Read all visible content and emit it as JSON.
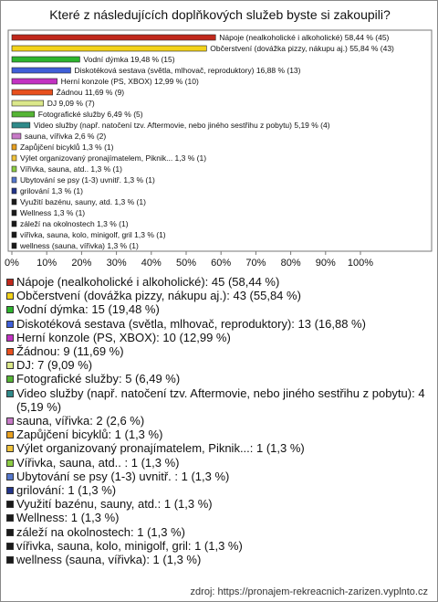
{
  "chart_data": {
    "type": "bar",
    "orientation": "horizontal",
    "title": "Které z následujících doplňkových služeb byste si zakoupili?",
    "categories": [
      "Nápoje (nealkoholické i alkoholické)",
      "Občerstvení (dovážka pizzy, nákupu aj.)",
      "Vodní dýmka",
      "Diskotéková sestava (světla, mlhovač, reproduktory)",
      "Herní konzole (PS, XBOX)",
      "Žádnou",
      "DJ",
      "Fotografické služby",
      "Video služby (např. natočení tzv. Aftermovie, nebo jiného sestřihu z pobytu)",
      "sauna, vířivka",
      "Zapůjčení bicyklů",
      "Výlet organizovaný pronajímatelem, Piknik...",
      "Vířivka, sauna, atd.. ",
      "Ubytování se psy (1-3) uvnitř. ",
      "grilování",
      "Využití bazénu, sauny, atd.",
      "Wellness",
      "záleží na okolnostech",
      "vířivka, sauna, kolo, minigolf, gril",
      "wellness (sauna, vířivka)"
    ],
    "values": [
      58.44,
      55.84,
      19.48,
      16.88,
      12.99,
      11.69,
      9.09,
      6.49,
      5.19,
      2.6,
      1.3,
      1.3,
      1.3,
      1.3,
      1.3,
      1.3,
      1.3,
      1.3,
      1.3,
      1.3
    ],
    "value_labels": [
      "Nápoje (nealkoholické i alkoholické) 58,44 % (45)",
      "Občerstvení (dovážka pizzy, nákupu aj.) 55,84 % (43)",
      "Vodní dýmka 19,48 % (15)",
      "Diskotéková sestava (světla, mlhovač, reproduktory) 16,88 % (13)",
      "Herní konzole (PS, XBOX) 12,99 % (10)",
      "Žádnou 11,69 % (9)",
      "DJ 9,09 % (7)",
      "Fotografické služby 6,49 % (5)",
      "Video služby (např. natočení tzv. Aftermovie, nebo jiného sestřihu z pobytu) 5,19 % (4)",
      "sauna, vířivka 2,6 % (2)",
      "Zapůjčení bicyklů 1,3 % (1)",
      "Výlet organizovaný pronajímatelem, Piknik... 1,3 % (1)",
      "Vířivka, sauna, atd..  1,3 % (1)",
      "Ubytování se psy (1-3) uvnitř.  1,3 % (1)",
      "grilování 1,3 % (1)",
      "Využití bazénu, sauny, atd. 1,3 % (1)",
      "Wellness 1,3 % (1)",
      "záleží na okolnostech 1,3 % (1)",
      "vířivka, sauna, kolo, minigolf, gril 1,3 % (1)",
      "wellness (sauna, vířivka) 1,3 % (1)"
    ],
    "legend_labels": [
      "Nápoje (nealkoholické i alkoholické): 45 (58,44 %)",
      "Občerstvení (dovážka pizzy, nákupu aj.): 43 (55,84 %)",
      "Vodní dýmka: 15 (19,48 %)",
      "Diskotéková sestava (světla, mlhovač, reproduktory): 13 (16,88 %)",
      "Herní konzole (PS, XBOX): 10 (12,99 %)",
      "Žádnou: 9 (11,69 %)",
      "DJ: 7 (9,09 %)",
      "Fotografické služby: 5 (6,49 %)",
      "Video služby (např. natočení tzv. Aftermovie, nebo jiného sestřihu z pobytu): 4 (5,19 %)",
      "sauna, vířivka: 2 (2,6 %)",
      "Zapůjčení bicyklů: 1 (1,3 %)",
      "Výlet organizovaný pronajímatelem, Piknik...: 1 (1,3 %)",
      "Vířivka, sauna, atd.. : 1 (1,3 %)",
      "Ubytování se psy (1-3) uvnitř. : 1 (1,3 %)",
      "grilování: 1 (1,3 %)",
      "Využití bazénu, sauny, atd.: 1 (1,3 %)",
      "Wellness: 1 (1,3 %)",
      "záleží na okolnostech: 1 (1,3 %)",
      "vířivka, sauna, kolo, minigolf, gril: 1 (1,3 %)",
      "wellness (sauna, vířivka): 1 (1,3 %)"
    ],
    "colors": [
      "#c0281c",
      "#f2d21a",
      "#2db52d",
      "#3f5fd8",
      "#c232c2",
      "#e8501e",
      "#dbe88a",
      "#55b535",
      "#2f8a8a",
      "#c77ac7",
      "#e8a020",
      "#efc23c",
      "#8ccc44",
      "#5577cc",
      "#22348a",
      "#1a1a1a",
      "#1a1a1a",
      "#1a1a1a",
      "#1a1a1a",
      "#1a1a1a"
    ],
    "xlim": [
      0,
      100
    ],
    "xticks": [
      {
        "value": 0,
        "label": "0%"
      },
      {
        "value": 10,
        "label": "10%"
      },
      {
        "value": 20,
        "label": "20%"
      },
      {
        "value": 30,
        "label": "30%"
      },
      {
        "value": 40,
        "label": "40%"
      },
      {
        "value": 50,
        "label": "50%"
      },
      {
        "value": 60,
        "label": "60%"
      },
      {
        "value": 70,
        "label": "70%"
      },
      {
        "value": 80,
        "label": "80%"
      },
      {
        "value": 90,
        "label": "90%"
      },
      {
        "value": 100,
        "label": "100%"
      }
    ],
    "grid": false,
    "source": "zdroj: https://pronajem-rekreacnich-zarizen.vyplnto.cz"
  }
}
